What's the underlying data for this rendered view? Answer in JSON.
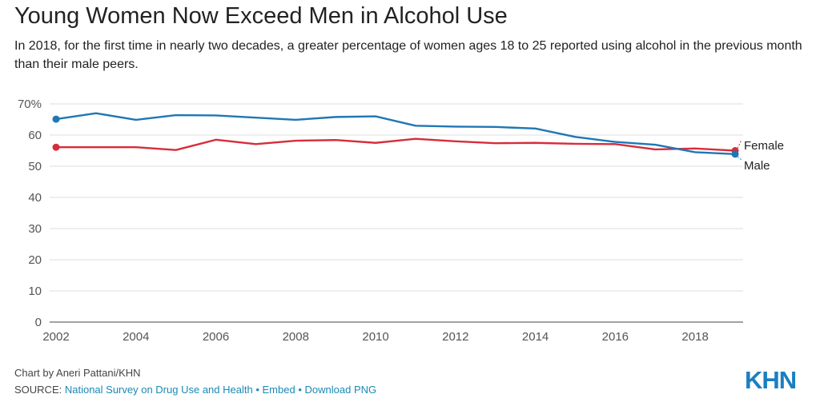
{
  "chart_data": {
    "type": "line",
    "title": "Young Women Now Exceed Men in Alcohol Use",
    "subtitle": "In 2018, for the first time in nearly two decades, a greater percentage of women ages 18 to 25 reported using alcohol in the previous month than their male peers.",
    "x": [
      2002,
      2003,
      2004,
      2005,
      2006,
      2007,
      2008,
      2009,
      2010,
      2011,
      2012,
      2013,
      2014,
      2015,
      2016,
      2017,
      2018,
      2019
    ],
    "series": [
      {
        "name": "Male",
        "color": "#1f77b4",
        "values": [
          65.1,
          67.0,
          64.9,
          66.4,
          66.3,
          65.6,
          64.9,
          65.8,
          66.0,
          63.0,
          62.7,
          62.6,
          62.1,
          59.4,
          57.8,
          56.9,
          54.5,
          53.9
        ]
      },
      {
        "name": "Female",
        "color": "#d62d3b",
        "values": [
          56.1,
          56.1,
          56.1,
          55.2,
          58.5,
          57.1,
          58.2,
          58.4,
          57.5,
          58.8,
          58.0,
          57.4,
          57.5,
          57.2,
          57.1,
          55.4,
          55.7,
          55.0
        ]
      }
    ],
    "xticks": [
      "2002",
      "2004",
      "2006",
      "2008",
      "2010",
      "2012",
      "2014",
      "2016",
      "2018"
    ],
    "yticks": [
      "0",
      "10",
      "20",
      "30",
      "40",
      "50",
      "60",
      "70%"
    ],
    "ylim": [
      0,
      70
    ],
    "grid": true,
    "legend": "end-labels"
  },
  "footer": {
    "credit": "Chart by Aneri Pattani/KHN",
    "source_label": "SOURCE: ",
    "source_link": "National Survey on Drug Use and Health",
    "separator": "•",
    "embed": "Embed",
    "download": "Download PNG"
  },
  "logo_text": "KHN"
}
